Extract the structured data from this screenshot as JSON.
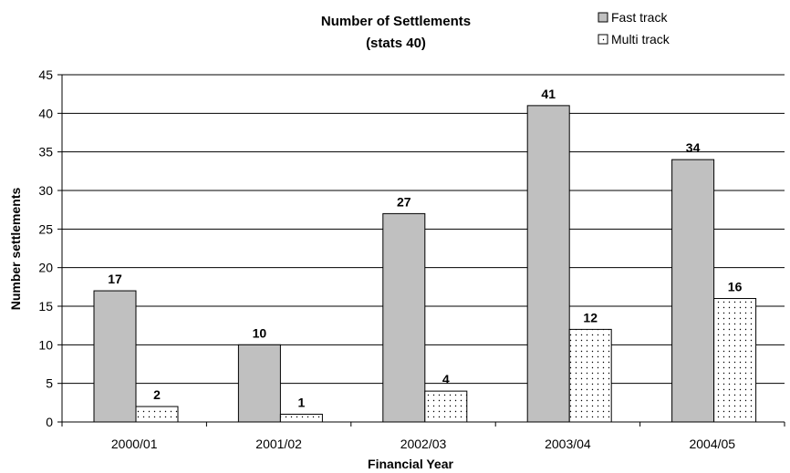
{
  "chart_data": {
    "type": "bar",
    "title": "Number of Settlements",
    "subtitle": "(stats 40)",
    "xlabel": "Financial Year",
    "ylabel": "Number settlements",
    "categories": [
      "2000/01",
      "2001/02",
      "2002/03",
      "2003/04",
      "2004/05"
    ],
    "series": [
      {
        "name": "Fast track",
        "values": [
          17,
          10,
          27,
          41,
          34
        ],
        "color": "#c0c0c0",
        "pattern": "solid"
      },
      {
        "name": "Multi track",
        "values": [
          2,
          1,
          4,
          12,
          16
        ],
        "color": "#ffffff",
        "pattern": "dotted"
      }
    ],
    "ylim": [
      0,
      45
    ],
    "yticks": [
      0,
      5,
      10,
      15,
      20,
      25,
      30,
      35,
      40,
      45
    ],
    "grid": true,
    "legend": "top-right",
    "data_labels": true
  }
}
